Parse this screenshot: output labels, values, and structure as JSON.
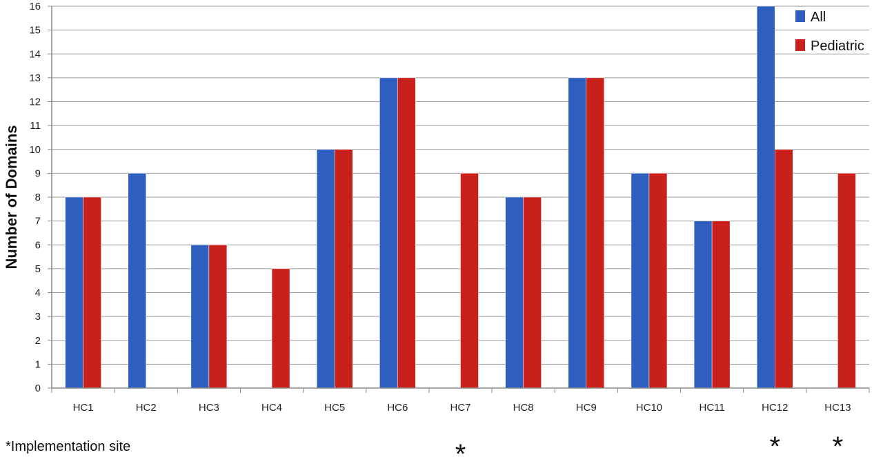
{
  "chart_data": {
    "type": "bar",
    "title": "",
    "xlabel": "",
    "ylabel": "Number of Domains",
    "ylim": [
      0,
      16
    ],
    "yticks": [
      0,
      1,
      2,
      3,
      4,
      5,
      6,
      7,
      8,
      9,
      10,
      11,
      12,
      13,
      14,
      15,
      16
    ],
    "grid": true,
    "legend_position": "top-right",
    "categories": [
      "HC1",
      "HC2",
      "HC3",
      "HC4",
      "HC5",
      "HC6",
      "HC7",
      "HC8",
      "HC9",
      "HC10",
      "HC11",
      "HC12",
      "HC13"
    ],
    "series": [
      {
        "name": "All",
        "color": "#2e5fbf",
        "values": [
          8,
          9,
          6,
          null,
          10,
          13,
          null,
          8,
          13,
          9,
          7,
          16,
          null
        ]
      },
      {
        "name": "Pediatric",
        "color": "#c8201b",
        "values": [
          8,
          null,
          6,
          5,
          10,
          13,
          9,
          8,
          13,
          9,
          7,
          10,
          9
        ]
      }
    ],
    "footnote": "*Implementation site",
    "implementation_site_marker": "*",
    "implementation_sites": [
      "HC7",
      "HC12",
      "HC13"
    ]
  }
}
